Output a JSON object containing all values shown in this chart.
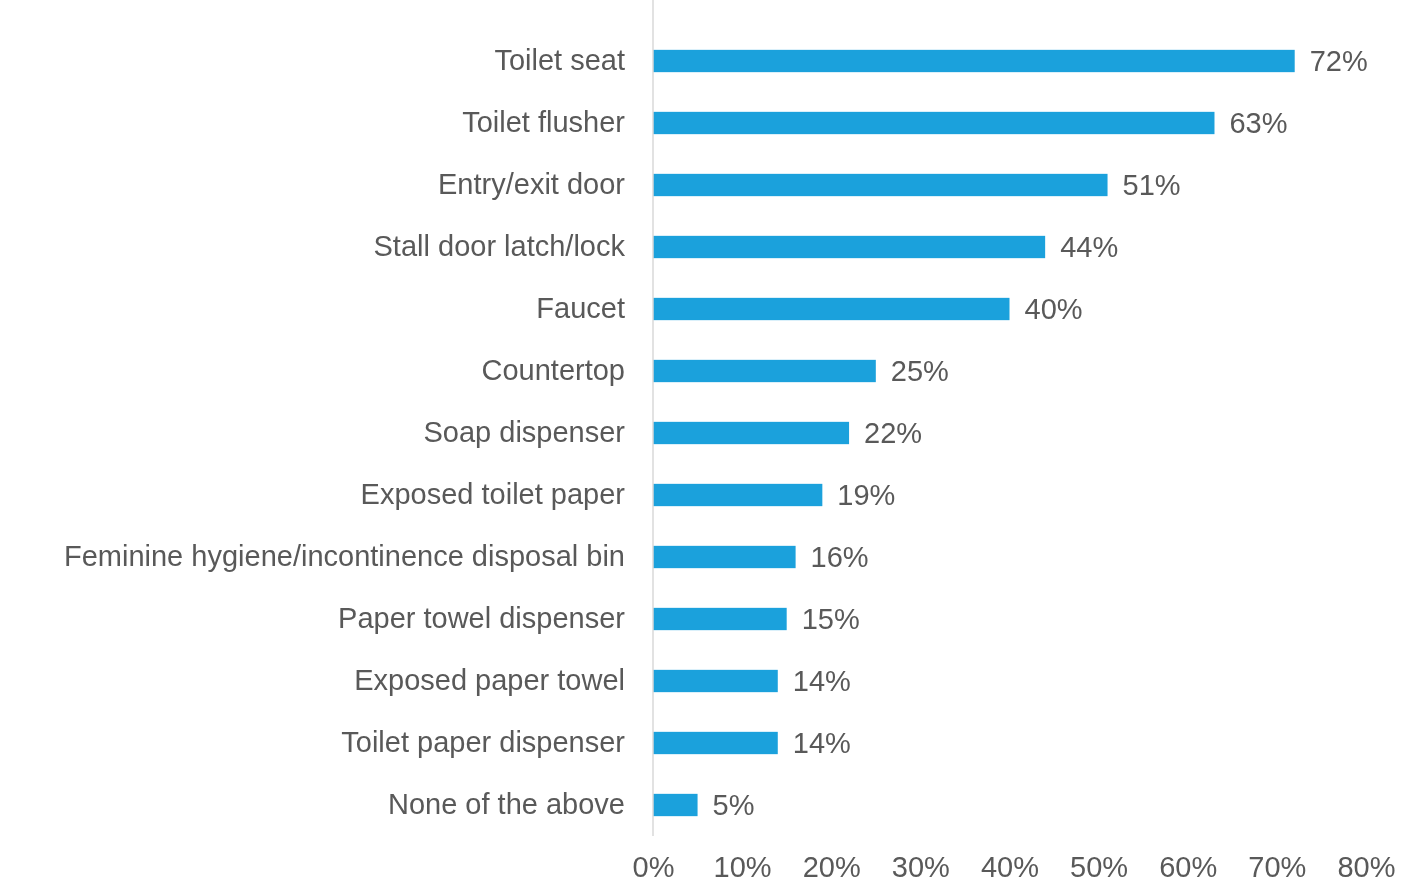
{
  "chart_data": {
    "type": "bar",
    "orientation": "horizontal",
    "categories": [
      "Toilet seat",
      "Toilet flusher",
      "Entry/exit door",
      "Stall door latch/lock",
      "Faucet",
      "Countertop",
      "Soap dispenser",
      "Exposed toilet paper",
      "Feminine hygiene/incontinence disposal bin",
      "Paper towel dispenser",
      "Exposed paper towel",
      "Toilet paper dispenser",
      "None of the above"
    ],
    "values": [
      72,
      63,
      51,
      44,
      40,
      25,
      22,
      19,
      16,
      15,
      14,
      14,
      5
    ],
    "value_labels": [
      "72%",
      "63%",
      "51%",
      "44%",
      "40%",
      "25%",
      "22%",
      "19%",
      "16%",
      "15%",
      "14%",
      "14%",
      "5%"
    ],
    "color": "#1ba1dc",
    "xlim": [
      0,
      80
    ],
    "xticks": [
      {
        "value": 0,
        "label": "0%"
      },
      {
        "value": 10,
        "label": "10%"
      },
      {
        "value": 20,
        "label": "20%"
      },
      {
        "value": 30,
        "label": "30%"
      },
      {
        "value": 40,
        "label": "40%"
      },
      {
        "value": 50,
        "label": "50%"
      },
      {
        "value": 60,
        "label": "60%"
      },
      {
        "value": 70,
        "label": "70%"
      },
      {
        "value": 80,
        "label": "80%"
      }
    ],
    "grid": false
  }
}
